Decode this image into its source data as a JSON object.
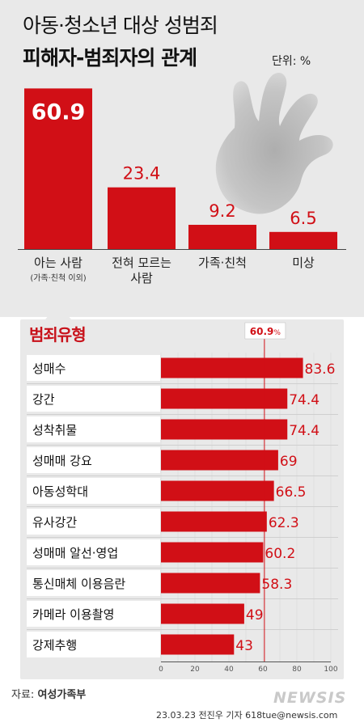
{
  "title_line1": "아동·청소년 대상 성범죄",
  "title_line2": "피해자-범죄자의 관계",
  "unit": "단위: %",
  "crime_section_title": "범죄유형",
  "reference_marker": {
    "value": "60.9",
    "unit": "%"
  },
  "source_label": "자료:",
  "source_name": "여성가족부",
  "credit": "23.03.23 전진우 기자 618tue@newsis.com",
  "logo_text": "NEWSIS",
  "colors": {
    "accent": "#d10f16",
    "panel": "#e9e9e9"
  },
  "chart_data": [
    {
      "type": "bar",
      "categories": [
        "아는 사람",
        "전혀 모르는 사람",
        "가족·친척",
        "미상"
      ],
      "category_lines": [
        [
          "아는 사람"
        ],
        [
          "전혀 모르는",
          "사람"
        ],
        [
          "가족·친척"
        ],
        [
          "미상"
        ]
      ],
      "category_notes": [
        "(가족·친척 이외)",
        "",
        "",
        ""
      ],
      "values": [
        60.9,
        23.4,
        9.2,
        6.5
      ],
      "value_labels": [
        "60.9",
        "23.4",
        "9.2",
        "6.5"
      ],
      "ylim": [
        0,
        65
      ]
    },
    {
      "type": "bar",
      "orientation": "horizontal",
      "categories": [
        "성매수",
        "강간",
        "성착취물",
        "성매매 강요",
        "아동성학대",
        "유사강간",
        "성매매 알선·영업",
        "통신매체 이용음란",
        "카메라 이용촬영",
        "강제추행"
      ],
      "values": [
        83.6,
        74.4,
        74.4,
        69,
        66.5,
        62.3,
        60.2,
        58.3,
        49,
        43
      ],
      "value_labels": [
        "83.6",
        "74.4",
        "74.4",
        "69",
        "66.5",
        "62.3",
        "60.2",
        "58.3",
        "49",
        "43"
      ],
      "xlim": [
        0,
        100
      ],
      "x_ticks": [
        "0",
        "20",
        "40",
        "60",
        "80",
        "100"
      ],
      "reference_line": 60.9
    }
  ]
}
